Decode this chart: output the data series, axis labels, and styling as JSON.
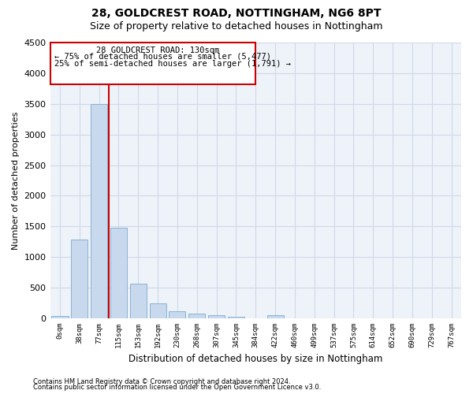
{
  "title1": "28, GOLDCREST ROAD, NOTTINGHAM, NG6 8PT",
  "title2": "Size of property relative to detached houses in Nottingham",
  "xlabel": "Distribution of detached houses by size in Nottingham",
  "ylabel": "Number of detached properties",
  "bar_labels": [
    "0sqm",
    "38sqm",
    "77sqm",
    "115sqm",
    "153sqm",
    "192sqm",
    "230sqm",
    "268sqm",
    "307sqm",
    "345sqm",
    "384sqm",
    "422sqm",
    "460sqm",
    "499sqm",
    "537sqm",
    "575sqm",
    "614sqm",
    "652sqm",
    "690sqm",
    "729sqm",
    "767sqm"
  ],
  "bar_values": [
    40,
    1280,
    3500,
    1480,
    570,
    240,
    115,
    75,
    55,
    30,
    0,
    50,
    0,
    0,
    0,
    0,
    0,
    0,
    0,
    0,
    0
  ],
  "bar_color": "#c9d9ed",
  "bar_edgecolor": "#7aabcf",
  "vline_color": "#cc0000",
  "vline_x": 2.5,
  "annotation_text_line1": "28 GOLDCREST ROAD: 130sqm",
  "annotation_text_line2": "← 75% of detached houses are smaller (5,477)",
  "annotation_text_line3": "25% of semi-detached houses are larger (1,791) →",
  "ylim": [
    0,
    4500
  ],
  "yticks": [
    0,
    500,
    1000,
    1500,
    2000,
    2500,
    3000,
    3500,
    4000,
    4500
  ],
  "footnote1": "Contains HM Land Registry data © Crown copyright and database right 2024.",
  "footnote2": "Contains public sector information licensed under the Open Government Licence v3.0.",
  "bg_color": "#eef3f9",
  "grid_color": "#d0d8e8",
  "title_fontsize": 10,
  "subtitle_fontsize": 9
}
